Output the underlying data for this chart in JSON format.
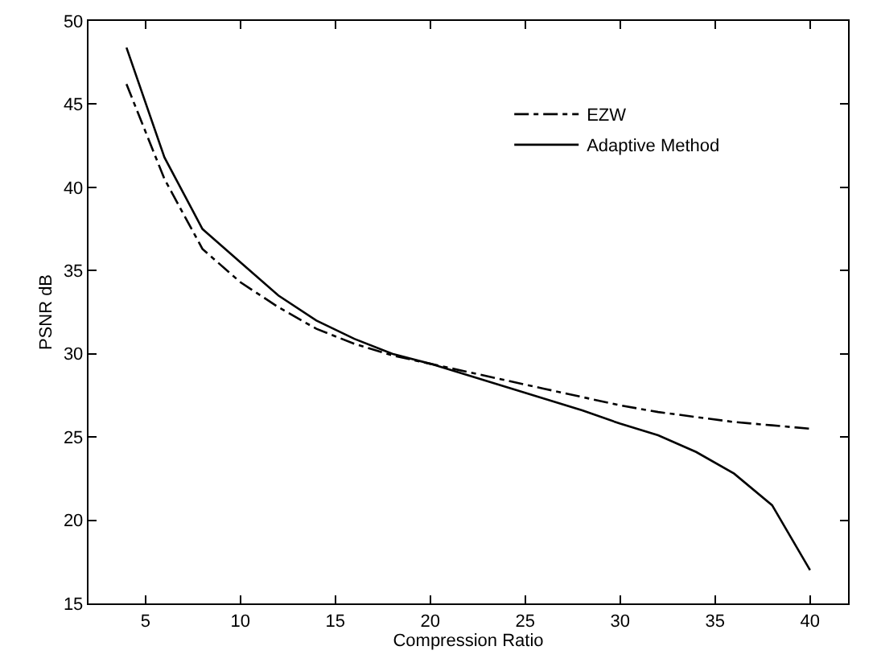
{
  "chart_data": {
    "type": "line",
    "xlabel": "Compression Ratio",
    "ylabel": "PSNR dB",
    "x": [
      4,
      6,
      8,
      10,
      12,
      14,
      16,
      18,
      20,
      22,
      24,
      26,
      28,
      30,
      32,
      34,
      36,
      38,
      40
    ],
    "series": [
      {
        "name": "EZW",
        "color": "#000000",
        "line_style": "dashdot",
        "values": [
          46.2,
          40.5,
          36.3,
          34.3,
          32.8,
          31.5,
          30.6,
          29.9,
          29.4,
          28.9,
          28.4,
          27.9,
          27.4,
          26.9,
          26.5,
          26.2,
          25.9,
          25.7,
          25.5
        ]
      },
      {
        "name": "Adaptive Method",
        "color": "#000000",
        "line_style": "solid",
        "values": [
          48.4,
          41.8,
          37.5,
          35.5,
          33.5,
          32.0,
          30.9,
          30.0,
          29.4,
          28.7,
          28.0,
          27.3,
          26.6,
          25.8,
          25.1,
          24.1,
          22.8,
          20.9,
          17.0
        ]
      }
    ],
    "xlim": [
      2,
      42
    ],
    "xticks": [
      5,
      10,
      15,
      20,
      25,
      30,
      35,
      40
    ],
    "ylim": [
      15,
      50
    ],
    "yticks": [
      15,
      20,
      25,
      30,
      35,
      40,
      45,
      50
    ],
    "legend": "top right",
    "marker": "none"
  }
}
